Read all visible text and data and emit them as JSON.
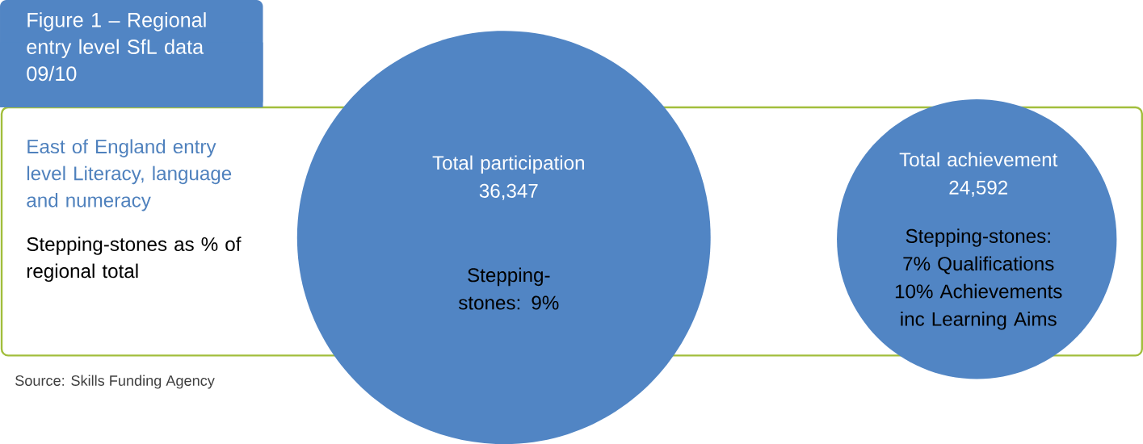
{
  "chart_data": {
    "type": "other",
    "title": "Figure 1 – Regional entry level SfL data 09/10",
    "subtitle": "East of England entry level Literacy, language and numeracy",
    "categories": [
      "Total participation",
      "Total achievement"
    ],
    "values": [
      36347,
      24592
    ],
    "value_labels": [
      "36,347",
      "24,592"
    ],
    "colors": [
      "#5185c4",
      "#5185c4"
    ],
    "annotations": [
      "Stepping-stones as % of regional total",
      "Stepping-stones: 9%",
      "Stepping-stones: 7% Qualifications 10% Achievements inc Learning Aims",
      "Source: Skills Funding Agency"
    ]
  }
}
